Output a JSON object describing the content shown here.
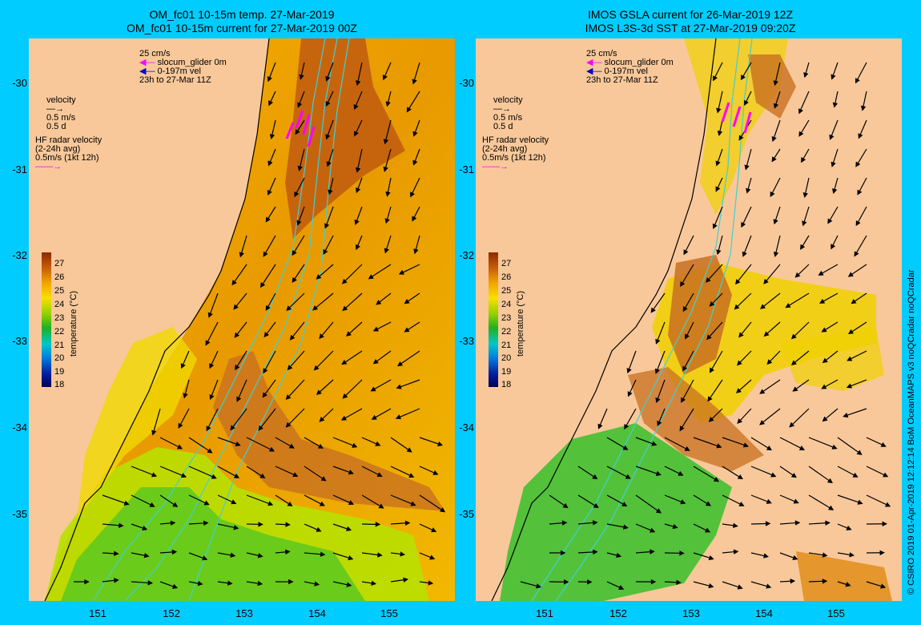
{
  "left": {
    "title_line1": "OM_fc01 10-15m temp. 27-Mar-2019",
    "title_line2": "OM_fc01 10-15m current for 27-Mar-2019 00Z"
  },
  "right": {
    "title_line1": "IMOS GSLA current for 26-Mar-2019 12Z",
    "title_line2": "IMOS L3S-3d SST at 27-Mar-2019 09:20Z"
  },
  "axes": {
    "y_ticks": [
      "-30",
      "-31",
      "-32",
      "-33",
      "-34",
      "-35"
    ],
    "x_ticks": [
      "151",
      "152",
      "153",
      "154",
      "155"
    ]
  },
  "legend": {
    "scale_25": "25 cm/s",
    "glider": "slocum_glider 0m",
    "vel": "0-197m vel",
    "period": "23h to 27-Mar 11Z",
    "velocity": "velocity",
    "vel_ms": "0.5 m/s",
    "vel_d": "0.5 d",
    "hf1": "HF radar velocity",
    "hf2": "(2-24h avg)",
    "hf3": "0.5m/s (1kt 12h)"
  },
  "colorbar": {
    "label": "temperature (°C)",
    "ticks": [
      "27",
      "26",
      "25",
      "24",
      "23",
      "22",
      "21",
      "20",
      "19",
      "18"
    ]
  },
  "credit": "© CSIRO 2019  01-Apr-2019 12:12:14 BoM OceanMAPS v3 noQCradar noQCradar",
  "colors": {
    "background": "#00ccff",
    "land": "#f8c89a",
    "contour": "#40d0d0",
    "glider": "#ff00ff",
    "vel": "#0000cc"
  }
}
